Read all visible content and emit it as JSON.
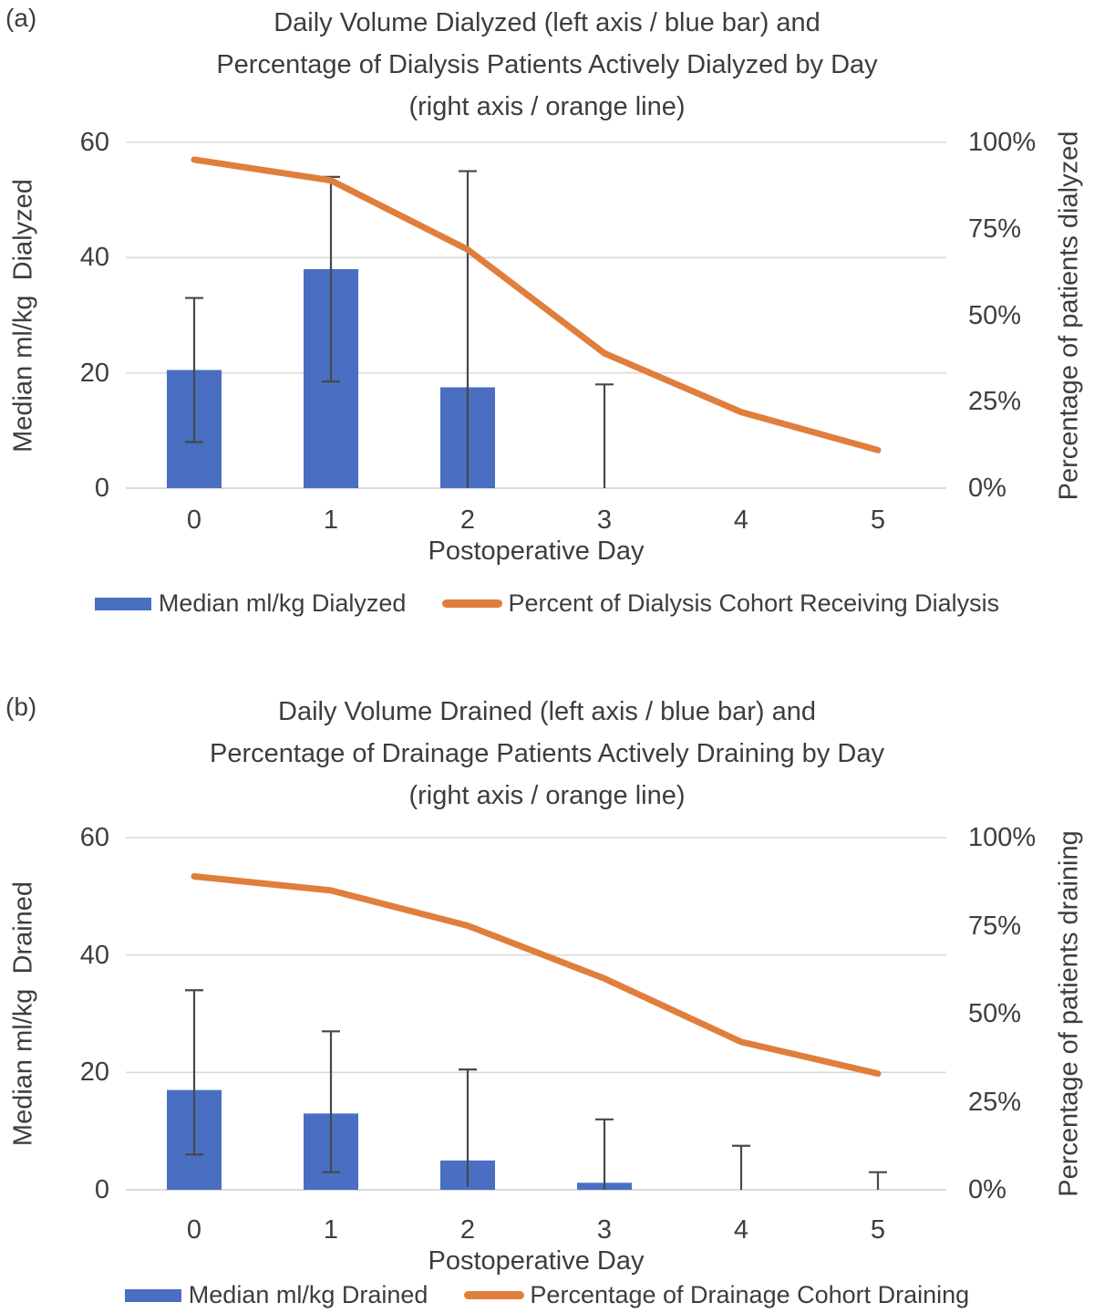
{
  "figure": {
    "background": "#ffffff",
    "text_color": "#3e3e3e",
    "gridline_color": "#d9d9d9",
    "axis_line_color": "#cfcfcf",
    "error_bar_color": "#45484c"
  },
  "chart_data": [
    {
      "type": "bar",
      "panel_label": "(a)",
      "title_lines": [
        "Daily Volume Dialyzed (left axis / blue bar) and",
        "Percentage of Dialysis Patients Actively Dialyzed by Day",
        "(right axis / orange line)"
      ],
      "title": "Daily Volume Dialyzed (left axis / blue bar) and Percentage of Dialysis Patients Actively Dialyzed by Day (right axis / orange line)",
      "x": [
        "0",
        "1",
        "2",
        "3",
        "4",
        "5"
      ],
      "xlabel": "Postoperative Day",
      "left_axis": {
        "label": "Median ml/kg  Dialyzed",
        "ticks": [
          0,
          20,
          40,
          60
        ],
        "range": [
          0,
          60
        ]
      },
      "right_axis": {
        "label": "Percentage of patients dialyzed",
        "ticks": [
          "0%",
          "25%",
          "50%",
          "75%",
          "100%"
        ],
        "range": [
          0,
          100
        ]
      },
      "grid": "horizontal",
      "legend_position": "bottom",
      "series": [
        {
          "name": "Median ml/kg Dialyzed",
          "type": "bar",
          "axis": "left",
          "color": "#4a6fc2",
          "values": [
            20.5,
            38,
            17.5,
            0,
            0,
            0
          ],
          "error_low": [
            8,
            18.5,
            0,
            0,
            null,
            null
          ],
          "error_high": [
            33,
            54,
            55,
            18,
            null,
            null
          ]
        },
        {
          "name": "Percent of Dialysis Cohort Receiving Dialysis",
          "type": "line",
          "axis": "right",
          "color": "#e07e3c",
          "values": [
            95,
            89,
            69,
            39,
            22,
            11
          ]
        }
      ]
    },
    {
      "type": "bar",
      "panel_label": "(b)",
      "title_lines": [
        "Daily Volume Drained (left axis / blue bar) and",
        "Percentage of Drainage Patients Actively Draining by Day",
        "(right axis / orange line)"
      ],
      "title": "Daily Volume Drained (left axis / blue bar) and Percentage of Drainage Patients Actively Draining by Day (right axis / orange line)",
      "x": [
        "0",
        "1",
        "2",
        "3",
        "4",
        "5"
      ],
      "xlabel": "Postoperative Day",
      "left_axis": {
        "label": "Median ml/kg  Drained",
        "ticks": [
          0,
          20,
          40,
          60
        ],
        "range": [
          0,
          60
        ]
      },
      "right_axis": {
        "label": "Percentage of patients draining",
        "ticks": [
          "0%",
          "25%",
          "50%",
          "75%",
          "100%"
        ],
        "range": [
          0,
          100
        ]
      },
      "grid": "horizontal",
      "legend_position": "bottom",
      "series": [
        {
          "name": "Median ml/kg Drained",
          "type": "bar",
          "axis": "left",
          "color": "#4a6fc2",
          "values": [
            17,
            13,
            5,
            1.2,
            0,
            0
          ],
          "error_low": [
            6,
            3,
            0.5,
            0,
            0,
            0
          ],
          "error_high": [
            34,
            27,
            20.5,
            12,
            7.5,
            3
          ]
        },
        {
          "name": "Percentage of Drainage Cohort Draining",
          "type": "line",
          "axis": "right",
          "color": "#e07e3c",
          "values": [
            89,
            85,
            75,
            60,
            42,
            33
          ]
        }
      ]
    }
  ]
}
